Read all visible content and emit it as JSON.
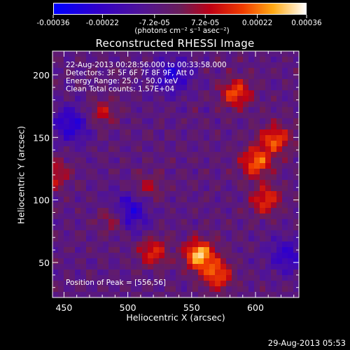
{
  "chart_data": {
    "type": "heatmap",
    "title": "Reconstructed RHESSI Image",
    "xlabel": "Heliocentric X (arcsec)",
    "ylabel": "Heliocentric Y (arcsec)",
    "xlim": [
      441,
      634
    ],
    "ylim": [
      22,
      219
    ],
    "x_ticks": [
      450,
      500,
      550,
      600
    ],
    "y_ticks": [
      50,
      100,
      150,
      200
    ],
    "grid": false,
    "colorbar": {
      "colormap": "blue-purple-red-orange-yellow-white",
      "units": "(photons cm⁻² s⁻¹ asec⁻²)",
      "min": -0.00036,
      "max": 0.00036,
      "tick_values": [
        -0.00036,
        -0.00022,
        -7.2e-05,
        7.2e-05,
        0.00022,
        0.00036
      ],
      "tick_labels": [
        "-0.00036",
        "-0.00022",
        "-7.2e-05",
        "7.2e-05",
        "0.00022",
        "0.00036"
      ]
    },
    "annotations": [
      "22-Aug-2013 00:28:56.000 to 00:33:58.000",
      "Detectors: 3F 5F 6F 7F 8F 9F, Att 0",
      "Energy Range: 25.0 - 50.0 keV",
      "Clean     Total counts: 1.57E+04"
    ],
    "peak_label": "Position of Peak = [556,56]",
    "peak": {
      "x": 556,
      "y": 56,
      "value": 0.00036
    },
    "bright_regions": [
      {
        "x": 556,
        "y": 56,
        "value": 0.00036
      },
      {
        "x": 570,
        "y": 40,
        "value": 0.00026
      },
      {
        "x": 600,
        "y": 130,
        "value": 0.00028
      },
      {
        "x": 615,
        "y": 148,
        "value": 0.00026
      },
      {
        "x": 585,
        "y": 185,
        "value": 0.00024
      },
      {
        "x": 608,
        "y": 100,
        "value": 0.00022
      },
      {
        "x": 520,
        "y": 58,
        "value": 0.0002
      },
      {
        "x": 490,
        "y": 85,
        "value": 0.00018
      },
      {
        "x": 443,
        "y": 120,
        "value": 0.00016
      },
      {
        "x": 480,
        "y": 170,
        "value": 0.00014
      },
      {
        "x": 515,
        "y": 110,
        "value": 0.00012
      }
    ],
    "dark_regions": [
      {
        "x": 500,
        "y": 90,
        "value": -0.00024
      },
      {
        "x": 455,
        "y": 160,
        "value": -0.0002
      },
      {
        "x": 535,
        "y": 200,
        "value": -0.00018
      },
      {
        "x": 625,
        "y": 55,
        "value": -0.00016
      }
    ]
  },
  "timestamp": "29-Aug-2013 05:53"
}
